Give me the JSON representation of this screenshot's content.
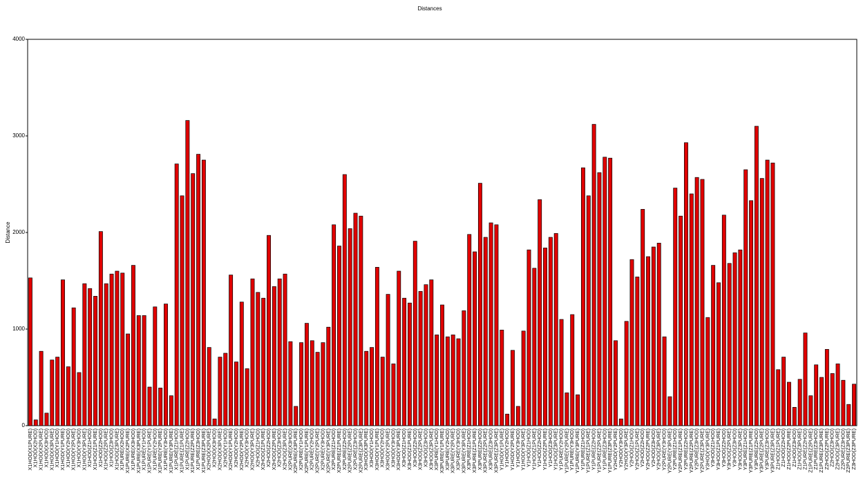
{
  "chart_data": {
    "type": "bar",
    "title": "Distances",
    "y_label": "Distance",
    "color": "#e00000",
    "categories": [
      "X1HOD(X1PURE)",
      "X1HOD(X2HOD)",
      "X1HOD(X2PURE)",
      "X1HOD(X3HOD)",
      "X1HOD(X3PURE)",
      "X1HOD(Y1HOD)",
      "X1HOD(Y1PURE)",
      "X1HOD(Y2HOD)",
      "X1HOD(Y2PURE)",
      "X1HOD(Y3HOD)",
      "X1HOD(Y3PURE)",
      "X1HOD(Z1HOD)",
      "X1HOD(Z1PURE)",
      "X1HOD(Z2HOD)",
      "X1HOD(Z2PURE)",
      "X1HOD(Z3HOD)",
      "X1HOD(Z3PURE)",
      "X1PURE(X2HOD)",
      "X1PURE(X2PURE)",
      "X1PURE(X3HOD)",
      "X1PURE(X3PURE)",
      "X1PURE(Y1HOD)",
      "X1PURE(Y1PURE)",
      "X1PURE(Y2HOD)",
      "X1PURE(Y2PURE)",
      "X1PURE(Y3HOD)",
      "X1PURE(Y3PURE)",
      "X1PURE(Z1HOD)",
      "X1PURE(Z1PURE)",
      "X1PURE(Z2HOD)",
      "X1PURE(Z2PURE)",
      "X1PURE(Z3HOD)",
      "X1PURE(Z3PURE)",
      "X2HOD(X2PURE)",
      "X2HOD(X3HOD)",
      "X2HOD(X3PURE)",
      "X2HOD(Y1HOD)",
      "X2HOD(Y1PURE)",
      "X2HOD(Y2HOD)",
      "X2HOD(Y2PURE)",
      "X2HOD(Y3HOD)",
      "X2HOD(Y3PURE)",
      "X2HOD(Z1HOD)",
      "X2HOD(Z1PURE)",
      "X2HOD(Z2HOD)",
      "X2HOD(Z2PURE)",
      "X2HOD(Z3HOD)",
      "X2HOD(Z3PURE)",
      "X2PURE(X3HOD)",
      "X2PURE(X3PURE)",
      "X2PURE(Y1HOD)",
      "X2PURE(Y1PURE)",
      "X2PURE(Y2HOD)",
      "X2PURE(Y2PURE)",
      "X2PURE(Y3HOD)",
      "X2PURE(Y3PURE)",
      "X2PURE(Z1HOD)",
      "X2PURE(Z1PURE)",
      "X2PURE(Z2HOD)",
      "X2PURE(Z2PURE)",
      "X2PURE(Z3HOD)",
      "X2PURE(Z3PURE)",
      "X3HOD(X3PURE)",
      "X3HOD(Y1HOD)",
      "X3HOD(Y1PURE)",
      "X3HOD(Y2HOD)",
      "X3HOD(Y2PURE)",
      "X3HOD(Y3HOD)",
      "X3HOD(Y3PURE)",
      "X3HOD(Z1HOD)",
      "X3HOD(Z1PURE)",
      "X3HOD(Z2HOD)",
      "X3HOD(Z2PURE)",
      "X3HOD(Z3HOD)",
      "X3HOD(Z3PURE)",
      "X3PURE(Y1HOD)",
      "X3PURE(Y1PURE)",
      "X3PURE(Y2HOD)",
      "X3PURE(Y2PURE)",
      "X3PURE(Y3HOD)",
      "X3PURE(Y3PURE)",
      "X3PURE(Z1HOD)",
      "X3PURE(Z1PURE)",
      "X3PURE(Z2HOD)",
      "X3PURE(Z2PURE)",
      "X3PURE(Z3HOD)",
      "X3PURE(Z3PURE)",
      "Y1HOD(Y1PURE)",
      "Y1HOD(Y2HOD)",
      "Y1HOD(Y2PURE)",
      "Y1HOD(Y3HOD)",
      "Y1HOD(Y3PURE)",
      "Y1HOD(Z1HOD)",
      "Y1HOD(Z1PURE)",
      "Y1HOD(Z2HOD)",
      "Y1HOD(Z2PURE)",
      "Y1HOD(Z3HOD)",
      "Y1HOD(Z3PURE)",
      "Y1PURE(Y2HOD)",
      "Y1PURE(Y2PURE)",
      "Y1PURE(Y3HOD)",
      "Y1PURE(Y3PURE)",
      "Y1PURE(Z1HOD)",
      "Y1PURE(Z1PURE)",
      "Y1PURE(Z2HOD)",
      "Y1PURE(Z2PURE)",
      "Y1PURE(Z3HOD)",
      "Y1PURE(Z3PURE)",
      "Y2HOD(Y2PURE)",
      "Y2HOD(Y3HOD)",
      "Y2HOD(Y3PURE)",
      "Y2HOD(Z1HOD)",
      "Y2HOD(Z1PURE)",
      "Y2HOD(Z2HOD)",
      "Y2HOD(Z2PURE)",
      "Y2HOD(Z3HOD)",
      "Y2HOD(Z3PURE)",
      "Y2PURE(Y3HOD)",
      "Y2PURE(Y3PURE)",
      "Y2PURE(Z1HOD)",
      "Y2PURE(Z1PURE)",
      "Y2PURE(Z2HOD)",
      "Y2PURE(Z2PURE)",
      "Y2PURE(Z3HOD)",
      "Y2PURE(Z3PURE)",
      "Y3HOD(Y3PURE)",
      "Y3HOD(Z1HOD)",
      "Y3HOD(Z1PURE)",
      "Y3HOD(Z2HOD)",
      "Y3HOD(Z2PURE)",
      "Y3HOD(Z3HOD)",
      "Y3HOD(Z3PURE)",
      "Y3PURE(Z1HOD)",
      "Y3PURE(Z1PURE)",
      "Y3PURE(Z2HOD)",
      "Y3PURE(Z2PURE)",
      "Y3PURE(Z3HOD)",
      "Y3PURE(Z3PURE)",
      "Z1HOD(Z1PURE)",
      "Z1HOD(Z2HOD)",
      "Z1HOD(Z2PURE)",
      "Z1HOD(Z3HOD)",
      "Z1HOD(Z3PURE)",
      "Z1PURE(Z2HOD)",
      "Z1PURE(Z2PURE)",
      "Z1PURE(Z3HOD)",
      "Z1PURE(Z3PURE)",
      "Z2HOD(Z2PURE)",
      "Z2HOD(Z3HOD)",
      "Z2HOD(Z3PURE)",
      "Z2PURE(Z3HOD)",
      "Z2PURE(Z3PURE)",
      "Z3HOD(Z3PURE)"
    ],
    "values": [
      1530,
      60,
      770,
      130,
      680,
      710,
      1510,
      610,
      1220,
      550,
      1470,
      1420,
      1340,
      2010,
      1470,
      1570,
      1600,
      1580,
      950,
      1660,
      1140,
      1140,
      400,
      1230,
      390,
      1260,
      310,
      2710,
      2380,
      3160,
      2610,
      2810,
      2750,
      810,
      70,
      710,
      750,
      1560,
      660,
      1280,
      590,
      1520,
      1380,
      1320,
      1970,
      1440,
      1520,
      1570,
      870,
      200,
      860,
      1060,
      880,
      760,
      860,
      1020,
      2080,
      1860,
      2600,
      2040,
      2200,
      2170,
      770,
      810,
      1640,
      710,
      1360,
      640,
      1600,
      1320,
      1270,
      1910,
      1390,
      1460,
      1510,
      940,
      1250,
      920,
      940,
      900,
      1190,
      1980,
      1800,
      2510,
      1950,
      2100,
      2080,
      990,
      120,
      780,
      200,
      980,
      1820,
      1630,
      2340,
      1840,
      1950,
      1990,
      1100,
      340,
      1150,
      320,
      2670,
      2380,
      3120,
      2620,
      2780,
      2770,
      880,
      70,
      1080,
      1720,
      1540,
      2240,
      1750,
      1850,
      1890,
      920,
      300,
      2460,
      2170,
      2930,
      2400,
      2570,
      2550,
      1120,
      1660,
      1480,
      2180,
      1680,
      1790,
      1820,
      2650,
      2330,
      3100,
      2560,
      2750,
      2720,
      580,
      710,
      450,
      190,
      480,
      960,
      310,
      630,
      500,
      790,
      540,
      640,
      470,
      220,
      430
    ],
    "ylim": [
      0,
      4000
    ],
    "yticks": [
      0,
      1000,
      2000,
      3000,
      4000
    ]
  }
}
